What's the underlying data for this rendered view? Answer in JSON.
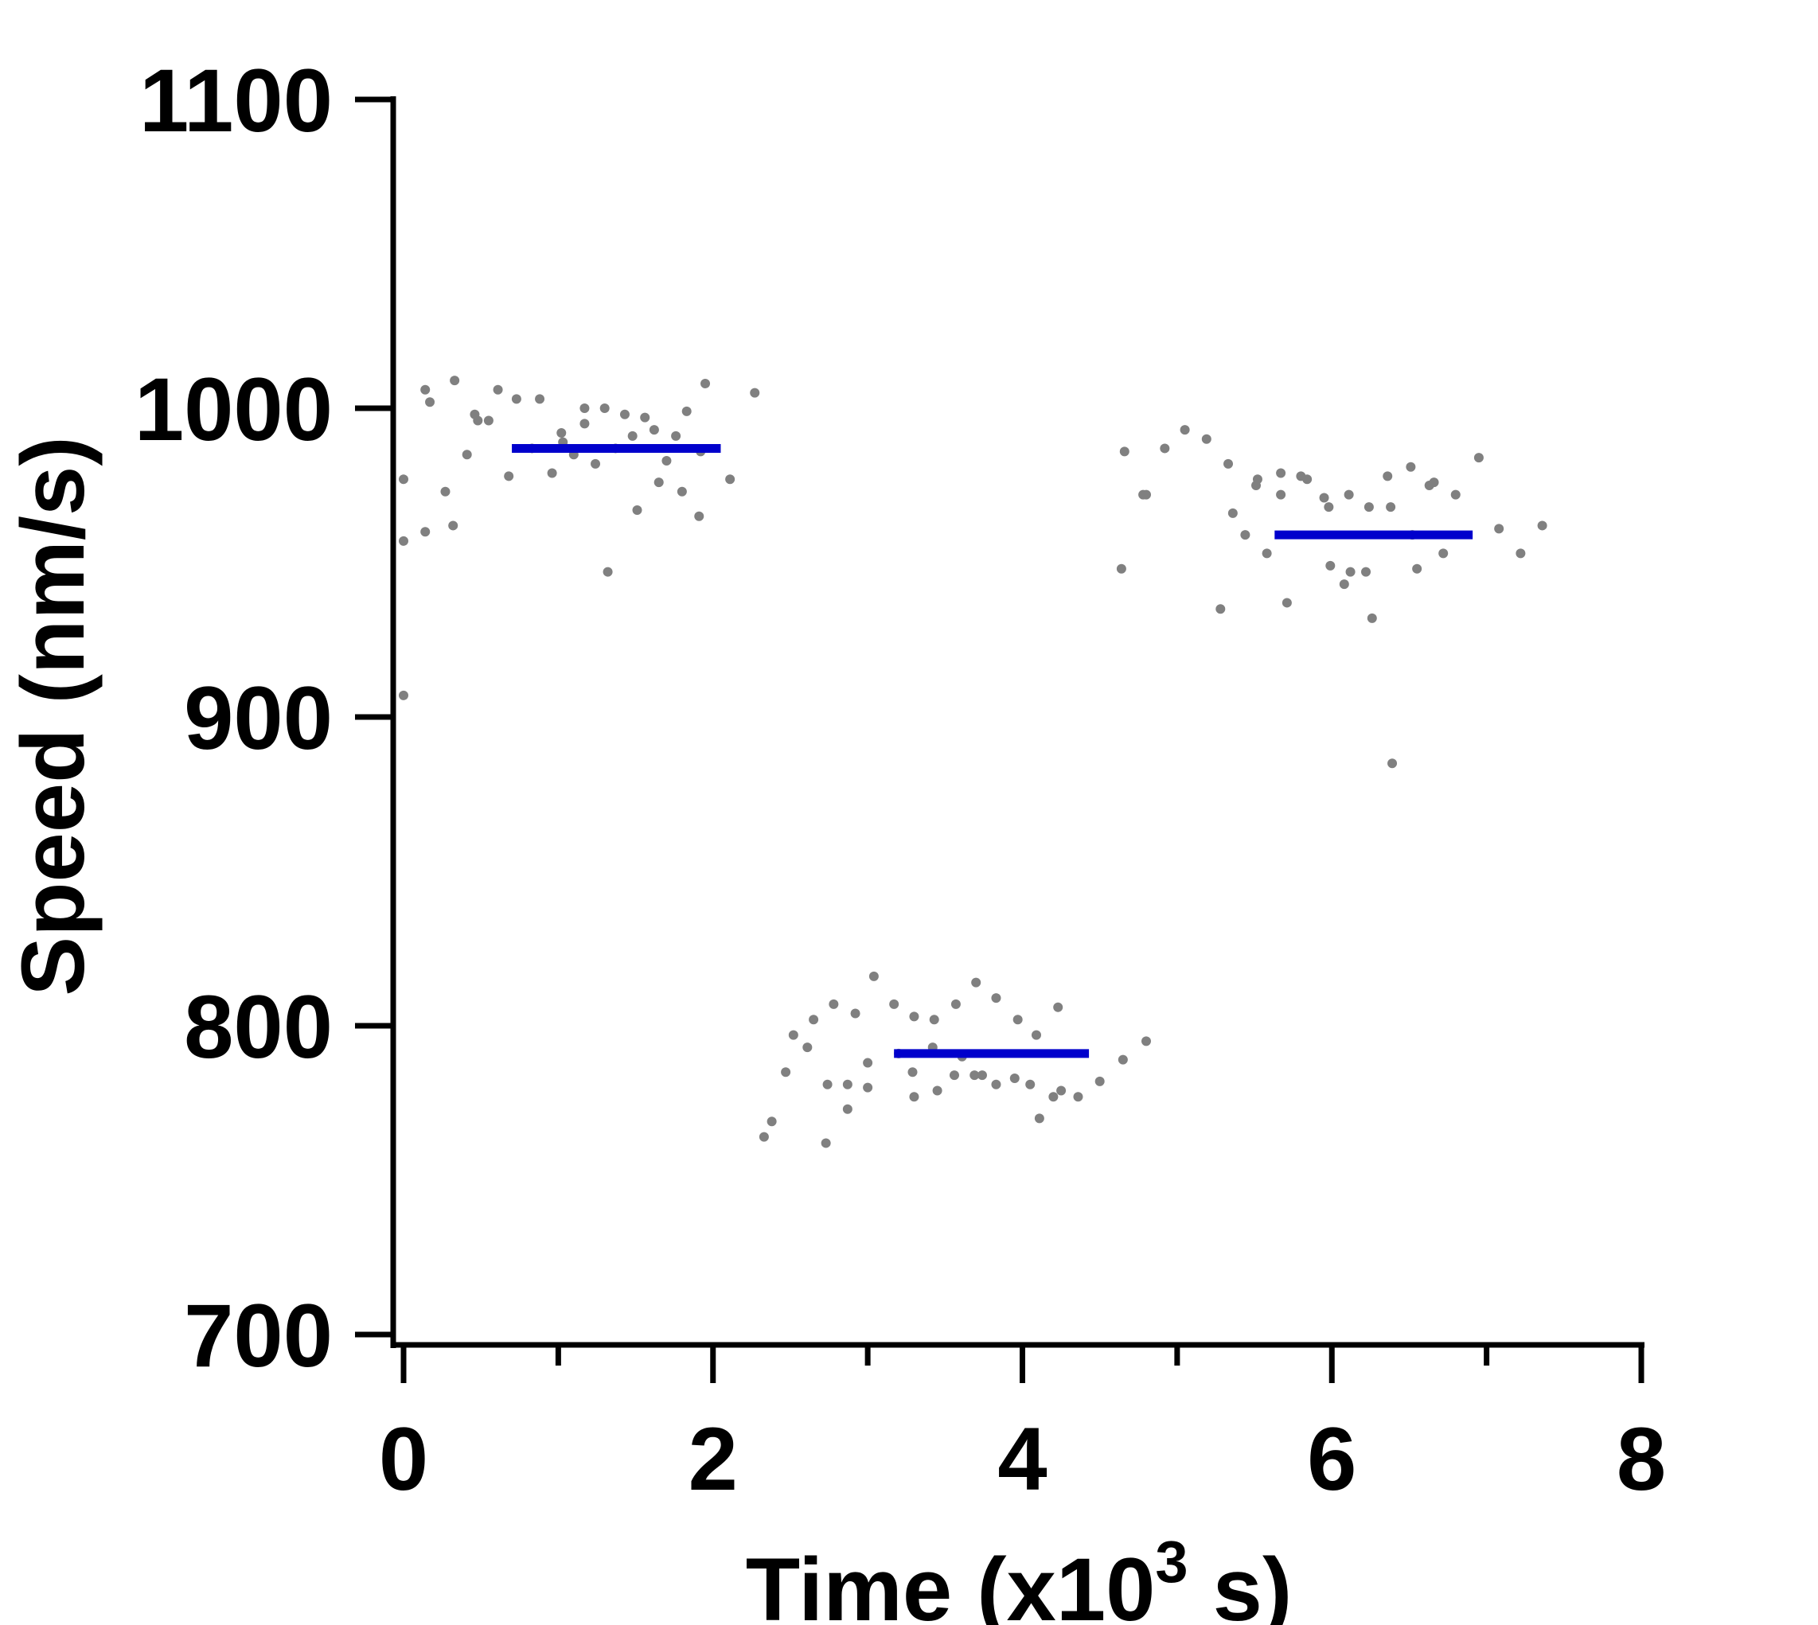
{
  "chart_data": {
    "type": "scatter",
    "title": "",
    "xlabel": "Time (x10",
    "xlabel_superscript": "3",
    "xlabel_suffix": " s)",
    "ylabel": "Speed (nm/s)",
    "xlim": [
      0,
      8
    ],
    "ylim": [
      700,
      1100
    ],
    "x_ticks": [
      "0",
      "2",
      "4",
      "6",
      "8"
    ],
    "x_minor_ticks": [
      1,
      3,
      5,
      7
    ],
    "y_ticks": [
      "700",
      "800",
      "900",
      "1000",
      "1100"
    ],
    "grid": false,
    "colors": {
      "points": "#808080",
      "mean_lines": "#0000CC",
      "axes": "#000000"
    },
    "points": [
      [
        0.0,
        977
      ],
      [
        0.0,
        957
      ],
      [
        0.0,
        907
      ],
      [
        0.14,
        1006
      ],
      [
        0.17,
        1002
      ],
      [
        0.14,
        960
      ],
      [
        0.27,
        973
      ],
      [
        0.32,
        962
      ],
      [
        0.33,
        1009
      ],
      [
        0.41,
        985
      ],
      [
        0.46,
        998
      ],
      [
        0.48,
        996
      ],
      [
        0.55,
        996
      ],
      [
        0.61,
        1006
      ],
      [
        0.68,
        978
      ],
      [
        0.73,
        1003
      ],
      [
        0.83,
        987
      ],
      [
        0.88,
        1003
      ],
      [
        0.96,
        979
      ],
      [
        1.02,
        992
      ],
      [
        1.03,
        989
      ],
      [
        1.1,
        985
      ],
      [
        1.17,
        1000
      ],
      [
        1.17,
        995
      ],
      [
        1.24,
        982
      ],
      [
        1.3,
        1000
      ],
      [
        1.32,
        947
      ],
      [
        1.37,
        987
      ],
      [
        1.43,
        998
      ],
      [
        1.51,
        967
      ],
      [
        1.48,
        991
      ],
      [
        1.56,
        997
      ],
      [
        1.62,
        993
      ],
      [
        1.65,
        976
      ],
      [
        1.7,
        983
      ],
      [
        1.76,
        991
      ],
      [
        1.8,
        973
      ],
      [
        1.83,
        999
      ],
      [
        1.91,
        965
      ],
      [
        1.92,
        986
      ],
      [
        1.95,
        1008
      ],
      [
        2.11,
        977
      ],
      [
        2.27,
        1005
      ],
      [
        2.33,
        764
      ],
      [
        2.38,
        769
      ],
      [
        2.47,
        785
      ],
      [
        2.52,
        797
      ],
      [
        2.61,
        793
      ],
      [
        2.65,
        802
      ],
      [
        2.73,
        762
      ],
      [
        2.78,
        807
      ],
      [
        2.74,
        781
      ],
      [
        2.87,
        781
      ],
      [
        2.87,
        773
      ],
      [
        2.92,
        804
      ],
      [
        3.0,
        788
      ],
      [
        3.0,
        780
      ],
      [
        3.04,
        816
      ],
      [
        3.17,
        807
      ],
      [
        3.2,
        791
      ],
      [
        3.29,
        785
      ],
      [
        3.3,
        777
      ],
      [
        3.3,
        803
      ],
      [
        3.42,
        793
      ],
      [
        3.43,
        802
      ],
      [
        3.45,
        779
      ],
      [
        3.57,
        807
      ],
      [
        3.56,
        784
      ],
      [
        3.61,
        790
      ],
      [
        3.69,
        784
      ],
      [
        3.7,
        814
      ],
      [
        3.74,
        784
      ],
      [
        3.83,
        781
      ],
      [
        3.83,
        809
      ],
      [
        3.95,
        783
      ],
      [
        3.97,
        802
      ],
      [
        4.05,
        781
      ],
      [
        4.09,
        797
      ],
      [
        4.11,
        770
      ],
      [
        4.2,
        777
      ],
      [
        4.23,
        806
      ],
      [
        4.25,
        779
      ],
      [
        4.36,
        777
      ],
      [
        4.5,
        782
      ],
      [
        4.65,
        789
      ],
      [
        4.8,
        795
      ],
      [
        4.64,
        948
      ],
      [
        4.66,
        986
      ],
      [
        4.78,
        972
      ],
      [
        4.8,
        972
      ],
      [
        4.92,
        987
      ],
      [
        5.05,
        993
      ],
      [
        5.19,
        990
      ],
      [
        5.28,
        935
      ],
      [
        5.33,
        982
      ],
      [
        5.36,
        966
      ],
      [
        5.44,
        959
      ],
      [
        5.51,
        975
      ],
      [
        5.52,
        977
      ],
      [
        5.58,
        953
      ],
      [
        5.67,
        979
      ],
      [
        5.67,
        972
      ],
      [
        5.71,
        937
      ],
      [
        5.8,
        978
      ],
      [
        5.84,
        977
      ],
      [
        5.95,
        971
      ],
      [
        5.98,
        968
      ],
      [
        5.99,
        949
      ],
      [
        6.08,
        943
      ],
      [
        6.11,
        972
      ],
      [
        6.12,
        947
      ],
      [
        6.22,
        947
      ],
      [
        6.24,
        968
      ],
      [
        6.26,
        932
      ],
      [
        6.36,
        978
      ],
      [
        6.38,
        968
      ],
      [
        6.39,
        885
      ],
      [
        6.51,
        981
      ],
      [
        6.52,
        959
      ],
      [
        6.55,
        948
      ],
      [
        6.63,
        975
      ],
      [
        6.66,
        976
      ],
      [
        6.72,
        953
      ],
      [
        6.8,
        972
      ],
      [
        6.95,
        984
      ],
      [
        7.08,
        961
      ],
      [
        7.22,
        953
      ],
      [
        7.36,
        962
      ]
    ],
    "mean_lines": [
      {
        "x_start": 0.7,
        "x_end": 2.05,
        "y": 987
      },
      {
        "x_start": 3.17,
        "x_end": 4.43,
        "y": 791
      },
      {
        "x_start": 5.63,
        "x_end": 6.91,
        "y": 959
      }
    ]
  }
}
